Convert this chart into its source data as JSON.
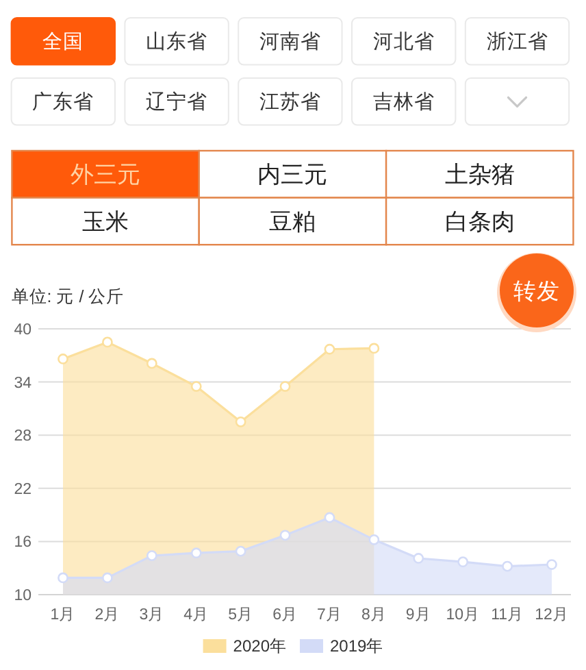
{
  "chart_data": [
    {
      "type": "other",
      "annotations": [
        "全国",
        "山东省",
        "河南省",
        "河北省",
        "浙江省",
        "广东省",
        "辽宁省",
        "江苏省",
        "吉林省"
      ]
    },
    {
      "type": "other",
      "annotations": [
        "外三元",
        "内三元",
        "土杂猪",
        "玉米",
        "豆粕",
        "白条肉"
      ]
    },
    {
      "type": "area",
      "ylabel": "单位: 元 / 公斤",
      "categories": [
        "1月",
        "2月",
        "3月",
        "4月",
        "5月",
        "6月",
        "7月",
        "8月",
        "9月",
        "10月",
        "11月",
        "12月"
      ],
      "series": [
        {
          "name": "2020年",
          "color": "#fbdf9c",
          "values": [
            36.6,
            38.5,
            36.1,
            33.5,
            29.5,
            33.5,
            37.7,
            37.8,
            null,
            null,
            null,
            null
          ]
        },
        {
          "name": "2019年",
          "color": "#d3dbf7",
          "values": [
            11.9,
            11.9,
            14.4,
            14.7,
            14.9,
            16.7,
            18.7,
            16.2,
            14.1,
            13.7,
            13.2,
            13.4
          ]
        }
      ],
      "ylim": [
        10,
        40
      ],
      "yticks": [
        10,
        16,
        22,
        28,
        34,
        40
      ],
      "grid": "y",
      "legend": "bottom",
      "marker": "circle",
      "line_style": "solid",
      "annotations": [
        "转发"
      ]
    }
  ]
}
